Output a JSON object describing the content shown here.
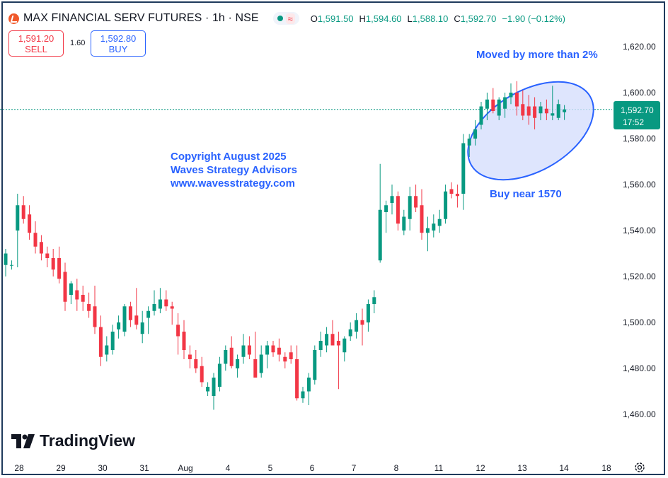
{
  "header": {
    "title": "MAX FINANCIAL SERV FUTURES · 1h · NSE",
    "ohlc": [
      {
        "label": "O",
        "value": "1,591.50"
      },
      {
        "label": "H",
        "value": "1,594.60"
      },
      {
        "label": "L",
        "value": "1,588.10"
      },
      {
        "label": "C",
        "value": "1,592.70"
      },
      {
        "label": "",
        "value": "−1.90 (−0.12%)"
      }
    ],
    "indicator_symbol": "≈"
  },
  "trade": {
    "sell_price": "1,591.20",
    "sell_label": "SELL",
    "spread": "1.60",
    "buy_price": "1,592.80",
    "buy_label": "BUY"
  },
  "brand": {
    "name": "TradingView"
  },
  "colors": {
    "up": "#089981",
    "down": "#f23645",
    "accent": "#2962ff",
    "ellipse_fill": "#d6dffc"
  },
  "chart_data": {
    "type": "candlestick",
    "price_axis": {
      "ticks": [
        "1,620.00",
        "1,600.00",
        "1,580.00",
        "1,560.00",
        "1,540.00",
        "1,520.00",
        "1,500.00",
        "1,480.00",
        "1,460.00"
      ],
      "ylim": [
        1456,
        1633
      ]
    },
    "last_price": {
      "value": "1,592.70",
      "countdown": "17:52"
    },
    "time_axis": [
      "28",
      "29",
      "30",
      "31",
      "Aug",
      "4",
      "5",
      "6",
      "7",
      "8",
      "11",
      "12",
      "13",
      "14",
      "18"
    ],
    "candles": [
      {
        "o": 1525,
        "h": 1532,
        "l": 1520,
        "c": 1530
      },
      {
        "o": 1525,
        "h": 1527,
        "l": 1523,
        "c": 1525
      },
      {
        "o": 1540,
        "h": 1556,
        "l": 1524,
        "c": 1551
      },
      {
        "o": 1551,
        "h": 1555,
        "l": 1543,
        "c": 1545
      },
      {
        "o": 1547,
        "h": 1551,
        "l": 1536,
        "c": 1539
      },
      {
        "o": 1539,
        "h": 1544,
        "l": 1530,
        "c": 1533
      },
      {
        "o": 1535,
        "h": 1538,
        "l": 1527,
        "c": 1530
      },
      {
        "o": 1530,
        "h": 1533,
        "l": 1524,
        "c": 1528
      },
      {
        "o": 1528,
        "h": 1532,
        "l": 1520,
        "c": 1523
      },
      {
        "o": 1528,
        "h": 1533,
        "l": 1517,
        "c": 1519
      },
      {
        "o": 1522,
        "h": 1526,
        "l": 1505,
        "c": 1509
      },
      {
        "o": 1512,
        "h": 1518,
        "l": 1508,
        "c": 1517
      },
      {
        "o": 1514,
        "h": 1519,
        "l": 1505,
        "c": 1510
      },
      {
        "o": 1512,
        "h": 1516,
        "l": 1505,
        "c": 1509
      },
      {
        "o": 1508,
        "h": 1513,
        "l": 1502,
        "c": 1505
      },
      {
        "o": 1507,
        "h": 1516,
        "l": 1495,
        "c": 1498
      },
      {
        "o": 1498,
        "h": 1503,
        "l": 1481,
        "c": 1485
      },
      {
        "o": 1486,
        "h": 1494,
        "l": 1483,
        "c": 1490
      },
      {
        "o": 1488,
        "h": 1499,
        "l": 1486,
        "c": 1496
      },
      {
        "o": 1497,
        "h": 1503,
        "l": 1493,
        "c": 1500
      },
      {
        "o": 1496,
        "h": 1508,
        "l": 1494,
        "c": 1507
      },
      {
        "o": 1507,
        "h": 1509,
        "l": 1498,
        "c": 1501
      },
      {
        "o": 1503,
        "h": 1515,
        "l": 1497,
        "c": 1499
      },
      {
        "o": 1495,
        "h": 1505,
        "l": 1491,
        "c": 1500
      },
      {
        "o": 1502,
        "h": 1507,
        "l": 1495,
        "c": 1505
      },
      {
        "o": 1505,
        "h": 1514,
        "l": 1503,
        "c": 1508
      },
      {
        "o": 1506,
        "h": 1515,
        "l": 1504,
        "c": 1510
      },
      {
        "o": 1510,
        "h": 1514,
        "l": 1505,
        "c": 1507
      },
      {
        "o": 1507,
        "h": 1509,
        "l": 1499,
        "c": 1506
      },
      {
        "o": 1499,
        "h": 1504,
        "l": 1486,
        "c": 1494
      },
      {
        "o": 1496,
        "h": 1501,
        "l": 1484,
        "c": 1488
      },
      {
        "o": 1486,
        "h": 1490,
        "l": 1480,
        "c": 1484
      },
      {
        "o": 1484,
        "h": 1488,
        "l": 1478,
        "c": 1480
      },
      {
        "o": 1481,
        "h": 1485,
        "l": 1472,
        "c": 1474
      },
      {
        "o": 1470,
        "h": 1474,
        "l": 1468,
        "c": 1472
      },
      {
        "o": 1468,
        "h": 1478,
        "l": 1462,
        "c": 1476
      },
      {
        "o": 1472,
        "h": 1485,
        "l": 1470,
        "c": 1482
      },
      {
        "o": 1482,
        "h": 1490,
        "l": 1479,
        "c": 1488
      },
      {
        "o": 1489,
        "h": 1494,
        "l": 1480,
        "c": 1481
      },
      {
        "o": 1480,
        "h": 1486,
        "l": 1476,
        "c": 1484
      },
      {
        "o": 1485,
        "h": 1495,
        "l": 1482,
        "c": 1490
      },
      {
        "o": 1490,
        "h": 1494,
        "l": 1484,
        "c": 1486
      },
      {
        "o": 1484,
        "h": 1496,
        "l": 1476,
        "c": 1476
      },
      {
        "o": 1478,
        "h": 1490,
        "l": 1476,
        "c": 1486
      },
      {
        "o": 1486,
        "h": 1492,
        "l": 1480,
        "c": 1490
      },
      {
        "o": 1490,
        "h": 1492,
        "l": 1485,
        "c": 1487
      },
      {
        "o": 1489,
        "h": 1493,
        "l": 1483,
        "c": 1486
      },
      {
        "o": 1485,
        "h": 1487,
        "l": 1480,
        "c": 1483
      },
      {
        "o": 1487,
        "h": 1490,
        "l": 1482,
        "c": 1484
      },
      {
        "o": 1484,
        "h": 1490,
        "l": 1466,
        "c": 1467
      },
      {
        "o": 1467,
        "h": 1472,
        "l": 1465,
        "c": 1470
      },
      {
        "o": 1470,
        "h": 1478,
        "l": 1464,
        "c": 1476
      },
      {
        "o": 1475,
        "h": 1490,
        "l": 1473,
        "c": 1488
      },
      {
        "o": 1488,
        "h": 1496,
        "l": 1485,
        "c": 1492
      },
      {
        "o": 1490,
        "h": 1498,
        "l": 1487,
        "c": 1495
      },
      {
        "o": 1495,
        "h": 1501,
        "l": 1490,
        "c": 1490
      },
      {
        "o": 1492,
        "h": 1496,
        "l": 1471,
        "c": 1490
      },
      {
        "o": 1487,
        "h": 1494,
        "l": 1483,
        "c": 1493
      },
      {
        "o": 1494,
        "h": 1500,
        "l": 1492,
        "c": 1497
      },
      {
        "o": 1496,
        "h": 1504,
        "l": 1493,
        "c": 1501
      },
      {
        "o": 1501,
        "h": 1506,
        "l": 1490,
        "c": 1499
      },
      {
        "o": 1500,
        "h": 1510,
        "l": 1496,
        "c": 1508
      },
      {
        "o": 1508,
        "h": 1514,
        "l": 1504,
        "c": 1511
      },
      {
        "o": 1527,
        "h": 1569,
        "l": 1526,
        "c": 1549
      },
      {
        "o": 1548,
        "h": 1553,
        "l": 1539,
        "c": 1551
      },
      {
        "o": 1552,
        "h": 1560,
        "l": 1547,
        "c": 1555
      },
      {
        "o": 1555,
        "h": 1557,
        "l": 1540,
        "c": 1543
      },
      {
        "o": 1540,
        "h": 1549,
        "l": 1538,
        "c": 1546
      },
      {
        "o": 1545,
        "h": 1559,
        "l": 1540,
        "c": 1555
      },
      {
        "o": 1555,
        "h": 1560,
        "l": 1548,
        "c": 1550
      },
      {
        "o": 1551,
        "h": 1558,
        "l": 1536,
        "c": 1539
      },
      {
        "o": 1539,
        "h": 1546,
        "l": 1531,
        "c": 1541
      },
      {
        "o": 1540,
        "h": 1547,
        "l": 1537,
        "c": 1543
      },
      {
        "o": 1542,
        "h": 1549,
        "l": 1539,
        "c": 1545
      },
      {
        "o": 1545,
        "h": 1560,
        "l": 1543,
        "c": 1557
      },
      {
        "o": 1558,
        "h": 1561,
        "l": 1554,
        "c": 1556
      },
      {
        "o": 1556,
        "h": 1560,
        "l": 1550,
        "c": 1555
      },
      {
        "o": 1556,
        "h": 1582,
        "l": 1549,
        "c": 1578
      },
      {
        "o": 1577,
        "h": 1582,
        "l": 1572,
        "c": 1580
      },
      {
        "o": 1580,
        "h": 1588,
        "l": 1577,
        "c": 1584
      },
      {
        "o": 1586,
        "h": 1596,
        "l": 1584,
        "c": 1594
      },
      {
        "o": 1593,
        "h": 1600,
        "l": 1588,
        "c": 1597
      },
      {
        "o": 1597,
        "h": 1602,
        "l": 1591,
        "c": 1592
      },
      {
        "o": 1590,
        "h": 1598,
        "l": 1588,
        "c": 1597
      },
      {
        "o": 1593,
        "h": 1600,
        "l": 1589,
        "c": 1598
      },
      {
        "o": 1598,
        "h": 1604,
        "l": 1595,
        "c": 1600
      },
      {
        "o": 1600,
        "h": 1605,
        "l": 1590,
        "c": 1594
      },
      {
        "o": 1595,
        "h": 1601,
        "l": 1588,
        "c": 1590
      },
      {
        "o": 1594,
        "h": 1599,
        "l": 1586,
        "c": 1590
      },
      {
        "o": 1594,
        "h": 1598,
        "l": 1584,
        "c": 1589
      },
      {
        "o": 1591,
        "h": 1596,
        "l": 1588,
        "c": 1594
      },
      {
        "o": 1593,
        "h": 1597,
        "l": 1588,
        "c": 1591
      },
      {
        "o": 1590,
        "h": 1603,
        "l": 1588,
        "c": 1591
      },
      {
        "o": 1589,
        "h": 1597,
        "l": 1588,
        "c": 1595
      },
      {
        "o": 1591.5,
        "h": 1594.6,
        "l": 1588.1,
        "c": 1592.7
      }
    ],
    "annotations": [
      {
        "text": "Moved by more than 2%"
      },
      {
        "text": "Buy near 1570"
      },
      {
        "text": "Copyright August 2025"
      },
      {
        "text": "Waves Strategy Advisors"
      },
      {
        "text": "www.wavesstrategy.com"
      }
    ],
    "grid": false
  }
}
